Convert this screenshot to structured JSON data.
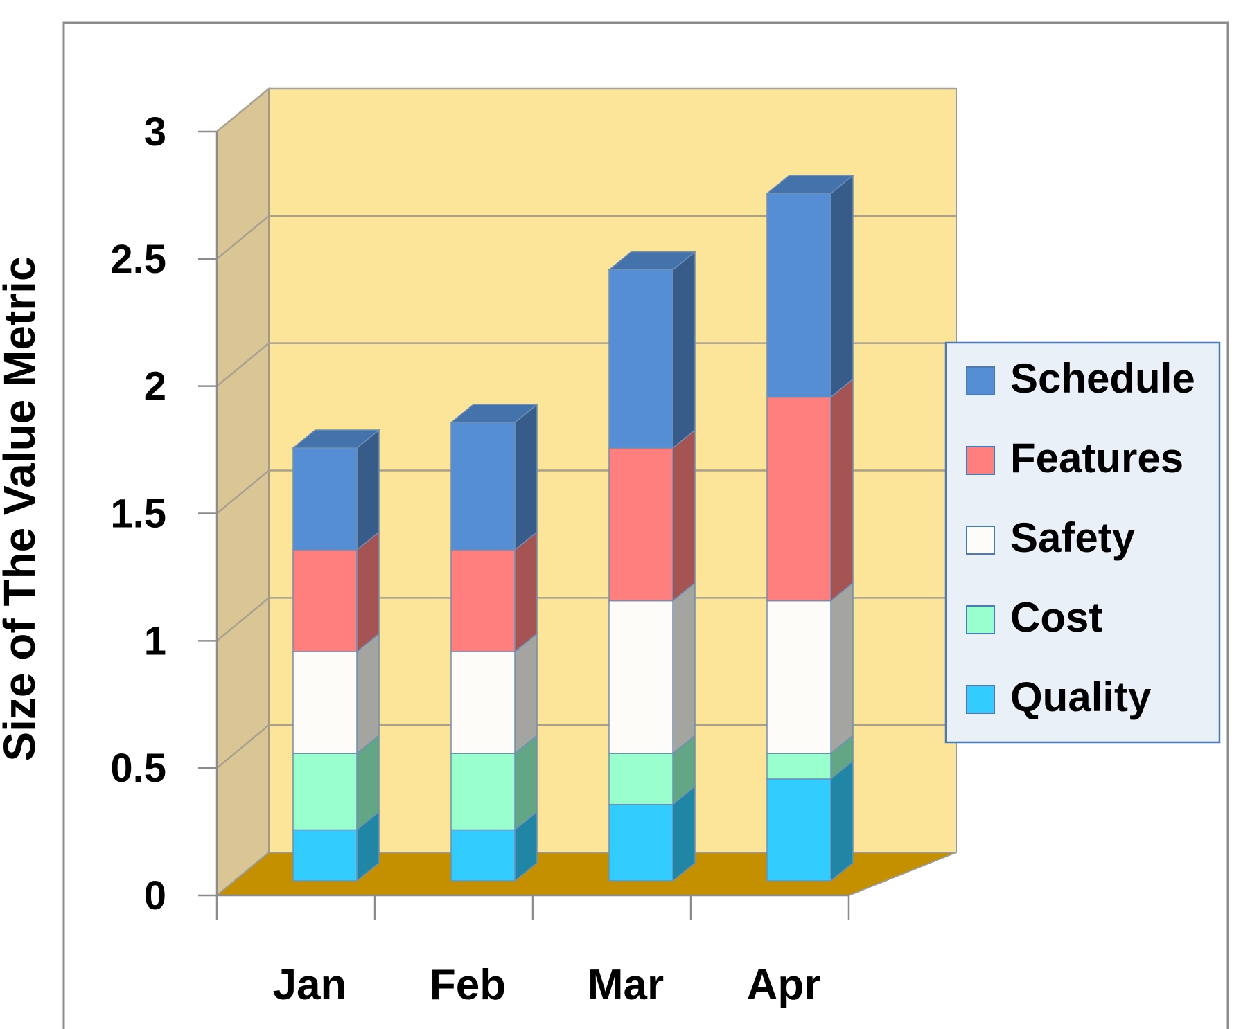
{
  "chart_data": {
    "type": "bar",
    "stacked": true,
    "three_d": true,
    "title": "",
    "xlabel": "",
    "ylabel": "Size of The Value Metric",
    "categories": [
      "Jan",
      "Feb",
      "Mar",
      "Apr"
    ],
    "ylim": [
      0,
      3
    ],
    "yticks": [
      "0",
      "0.5",
      "1",
      "1.5",
      "2",
      "2.5",
      "3"
    ],
    "grid": true,
    "legend_position": "right",
    "series": [
      {
        "name": "Quality",
        "color": "#33ccff",
        "values": [
          0.2,
          0.2,
          0.3,
          0.4
        ]
      },
      {
        "name": "Cost",
        "color": "#99ffcc",
        "values": [
          0.3,
          0.3,
          0.2,
          0.1
        ]
      },
      {
        "name": "Safety",
        "color": "#fdfcf8",
        "values": [
          0.4,
          0.4,
          0.6,
          0.6
        ]
      },
      {
        "name": "Features",
        "color": "#ff7f7f",
        "values": [
          0.4,
          0.4,
          0.6,
          0.8
        ]
      },
      {
        "name": "Schedule",
        "color": "#558ed5",
        "values": [
          0.4,
          0.5,
          0.7,
          0.8
        ]
      }
    ],
    "legend_order": [
      "Schedule",
      "Features",
      "Safety",
      "Cost",
      "Quality"
    ],
    "colors": {
      "back_wall": "#fce498",
      "side_wall": "#d9c694",
      "floor": "#c49000",
      "gridline": "#a8a090"
    }
  }
}
